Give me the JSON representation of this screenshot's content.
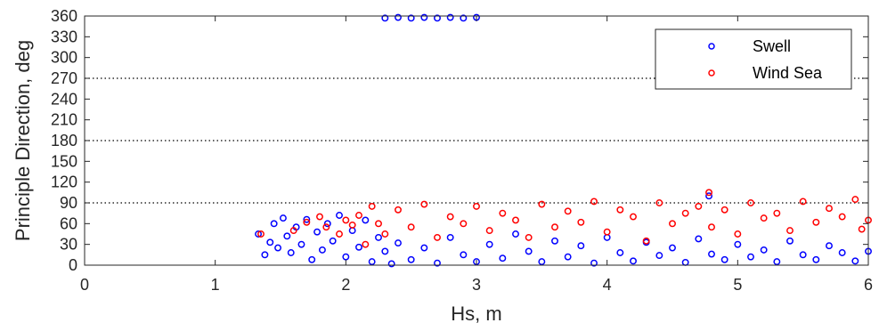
{
  "chart_data": {
    "type": "scatter",
    "title": "",
    "xlabel": "Hs, m",
    "ylabel": "Principle Direction, deg",
    "xlim": [
      0,
      6
    ],
    "ylim": [
      0,
      360
    ],
    "xticks": [
      "0",
      "1",
      "2",
      "3",
      "4",
      "5",
      "6"
    ],
    "yticks": [
      "0",
      "30",
      "60",
      "90",
      "120",
      "150",
      "180",
      "210",
      "240",
      "270",
      "300",
      "330",
      "360"
    ],
    "reference_lines_y": [
      90,
      180,
      270
    ],
    "grid": false,
    "legend": "top-right",
    "series": [
      {
        "name": "Swell",
        "color": "#0000ff",
        "marker": "circle-open",
        "points": [
          [
            1.33,
            45
          ],
          [
            1.38,
            15
          ],
          [
            1.42,
            33
          ],
          [
            1.45,
            60
          ],
          [
            1.48,
            25
          ],
          [
            1.52,
            68
          ],
          [
            1.55,
            42
          ],
          [
            1.58,
            18
          ],
          [
            1.62,
            55
          ],
          [
            1.66,
            30
          ],
          [
            1.7,
            66
          ],
          [
            1.74,
            8
          ],
          [
            1.78,
            48
          ],
          [
            1.82,
            22
          ],
          [
            1.86,
            60
          ],
          [
            1.9,
            35
          ],
          [
            1.95,
            72
          ],
          [
            2.0,
            12
          ],
          [
            2.05,
            50
          ],
          [
            2.1,
            26
          ],
          [
            2.15,
            65
          ],
          [
            2.2,
            5
          ],
          [
            2.25,
            40
          ],
          [
            2.3,
            20
          ],
          [
            2.35,
            2
          ],
          [
            2.4,
            32
          ],
          [
            2.5,
            8
          ],
          [
            2.6,
            25
          ],
          [
            2.7,
            3
          ],
          [
            2.8,
            40
          ],
          [
            2.9,
            15
          ],
          [
            3.0,
            5
          ],
          [
            3.1,
            30
          ],
          [
            3.2,
            10
          ],
          [
            3.3,
            45
          ],
          [
            3.4,
            20
          ],
          [
            3.5,
            5
          ],
          [
            3.6,
            35
          ],
          [
            3.7,
            12
          ],
          [
            3.8,
            28
          ],
          [
            3.9,
            3
          ],
          [
            4.0,
            40
          ],
          [
            4.1,
            18
          ],
          [
            4.2,
            6
          ],
          [
            4.3,
            33
          ],
          [
            4.4,
            14
          ],
          [
            4.5,
            25
          ],
          [
            4.6,
            4
          ],
          [
            4.7,
            38
          ],
          [
            4.78,
            100
          ],
          [
            4.8,
            16
          ],
          [
            4.9,
            8
          ],
          [
            5.0,
            30
          ],
          [
            5.1,
            12
          ],
          [
            5.2,
            22
          ],
          [
            5.3,
            5
          ],
          [
            5.4,
            35
          ],
          [
            5.5,
            15
          ],
          [
            5.6,
            8
          ],
          [
            5.7,
            28
          ],
          [
            5.8,
            18
          ],
          [
            5.9,
            6
          ],
          [
            6.0,
            20
          ],
          [
            2.3,
            357
          ],
          [
            2.4,
            358
          ],
          [
            2.5,
            357
          ],
          [
            2.6,
            358
          ],
          [
            2.7,
            357
          ],
          [
            2.8,
            358
          ],
          [
            2.9,
            357
          ],
          [
            3.0,
            358
          ]
        ]
      },
      {
        "name": "Wind Sea",
        "color": "#ff0000",
        "marker": "circle-open",
        "points": [
          [
            1.35,
            45
          ],
          [
            1.6,
            50
          ],
          [
            1.7,
            62
          ],
          [
            1.8,
            70
          ],
          [
            1.85,
            55
          ],
          [
            1.95,
            45
          ],
          [
            2.0,
            65
          ],
          [
            2.05,
            58
          ],
          [
            2.1,
            72
          ],
          [
            2.15,
            30
          ],
          [
            2.2,
            85
          ],
          [
            2.25,
            60
          ],
          [
            2.3,
            45
          ],
          [
            2.4,
            80
          ],
          [
            2.5,
            55
          ],
          [
            2.6,
            88
          ],
          [
            2.7,
            40
          ],
          [
            2.8,
            70
          ],
          [
            2.9,
            60
          ],
          [
            3.0,
            85
          ],
          [
            3.1,
            50
          ],
          [
            3.2,
            75
          ],
          [
            3.3,
            65
          ],
          [
            3.4,
            40
          ],
          [
            3.5,
            88
          ],
          [
            3.6,
            55
          ],
          [
            3.7,
            78
          ],
          [
            3.8,
            62
          ],
          [
            3.9,
            92
          ],
          [
            4.0,
            48
          ],
          [
            4.1,
            80
          ],
          [
            4.2,
            70
          ],
          [
            4.3,
            35
          ],
          [
            4.4,
            90
          ],
          [
            4.5,
            60
          ],
          [
            4.6,
            75
          ],
          [
            4.7,
            85
          ],
          [
            4.78,
            105
          ],
          [
            4.8,
            55
          ],
          [
            4.9,
            80
          ],
          [
            5.0,
            45
          ],
          [
            5.1,
            90
          ],
          [
            5.2,
            68
          ],
          [
            5.3,
            75
          ],
          [
            5.4,
            50
          ],
          [
            5.5,
            92
          ],
          [
            5.6,
            62
          ],
          [
            5.7,
            82
          ],
          [
            5.8,
            70
          ],
          [
            5.9,
            95
          ],
          [
            6.0,
            65
          ],
          [
            5.95,
            52
          ]
        ]
      }
    ]
  }
}
